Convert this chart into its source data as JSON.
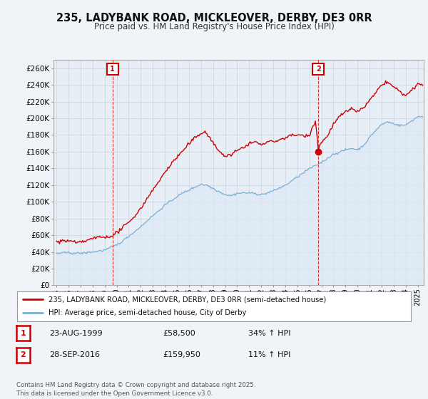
{
  "title": "235, LADYBANK ROAD, MICKLEOVER, DERBY, DE3 0RR",
  "subtitle": "Price paid vs. HM Land Registry's House Price Index (HPI)",
  "ylim": [
    0,
    270000
  ],
  "xlim_start": 1994.75,
  "xlim_end": 2025.5,
  "ytick_values": [
    0,
    20000,
    40000,
    60000,
    80000,
    100000,
    120000,
    140000,
    160000,
    180000,
    200000,
    220000,
    240000,
    260000
  ],
  "ytick_labels": [
    "£0",
    "£20K",
    "£40K",
    "£60K",
    "£80K",
    "£100K",
    "£120K",
    "£140K",
    "£160K",
    "£180K",
    "£200K",
    "£220K",
    "£240K",
    "£260K"
  ],
  "xtick_years": [
    1995,
    1996,
    1997,
    1998,
    1999,
    2000,
    2001,
    2002,
    2003,
    2004,
    2005,
    2006,
    2007,
    2008,
    2009,
    2010,
    2011,
    2012,
    2013,
    2014,
    2015,
    2016,
    2017,
    2018,
    2019,
    2020,
    2021,
    2022,
    2023,
    2024,
    2025
  ],
  "sale1_x": 1999.64,
  "sale1_y": 58500,
  "sale1_label": "1",
  "sale1_date": "23-AUG-1999",
  "sale1_price": "£58,500",
  "sale1_hpi": "34% ↑ HPI",
  "sale2_x": 2016.75,
  "sale2_y": 159950,
  "sale2_label": "2",
  "sale2_date": "28-SEP-2016",
  "sale2_price": "£159,950",
  "sale2_hpi": "11% ↑ HPI",
  "red_line_color": "#cc0000",
  "blue_line_color": "#7bafd4",
  "blue_fill_color": "#dce9f5",
  "background_color": "#f0f4f8",
  "plot_bg_color": "#e8eef5",
  "grid_color": "#c8d4e0",
  "legend_label_red": "235, LADYBANK ROAD, MICKLEOVER, DERBY, DE3 0RR (semi-detached house)",
  "legend_label_blue": "HPI: Average price, semi-detached house, City of Derby",
  "footer": "Contains HM Land Registry data © Crown copyright and database right 2025.\nThis data is licensed under the Open Government Licence v3.0."
}
